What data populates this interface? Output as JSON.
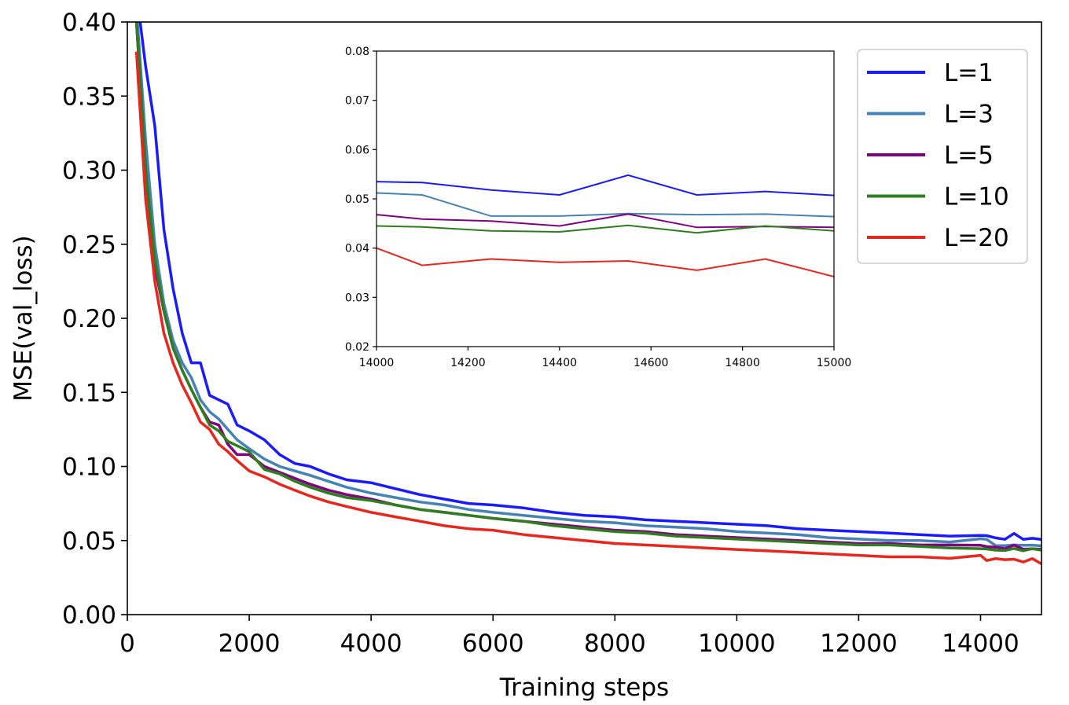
{
  "chart_data": {
    "type": "line",
    "title": "",
    "xlabel": "Training steps",
    "ylabel": "MSE(val_loss)",
    "xlim": [
      0,
      15000
    ],
    "ylim": [
      0,
      0.4
    ],
    "xticks": [
      0,
      2000,
      4000,
      6000,
      8000,
      10000,
      12000,
      14000
    ],
    "yticks": [
      0.0,
      0.05,
      0.1,
      0.15,
      0.2,
      0.25,
      0.3,
      0.35,
      0.4
    ],
    "grid": false,
    "legend_position": "top-right",
    "series": [
      {
        "name": "L=1",
        "color": "#1a1aff",
        "x": [
          150,
          300,
          450,
          600,
          750,
          900,
          1050,
          1200,
          1350,
          1500,
          1650,
          1800,
          2000,
          2250,
          2500,
          2750,
          3000,
          3300,
          3600,
          4000,
          4400,
          4800,
          5200,
          5600,
          6000,
          6500,
          7000,
          7500,
          8000,
          8500,
          9000,
          9500,
          10000,
          10500,
          11000,
          11500,
          12000,
          12500,
          13000,
          13500,
          14000,
          14100,
          14250,
          14400,
          14550,
          14700,
          14850,
          15000
        ],
        "y": [
          0.42,
          0.37,
          0.33,
          0.26,
          0.22,
          0.19,
          0.17,
          0.17,
          0.148,
          0.145,
          0.142,
          0.128,
          0.124,
          0.118,
          0.108,
          0.102,
          0.1,
          0.095,
          0.091,
          0.089,
          0.085,
          0.081,
          0.078,
          0.075,
          0.074,
          0.072,
          0.069,
          0.067,
          0.066,
          0.064,
          0.063,
          0.062,
          0.061,
          0.06,
          0.058,
          0.057,
          0.056,
          0.055,
          0.054,
          0.053,
          0.0535,
          0.0533,
          0.0518,
          0.0508,
          0.0548,
          0.0508,
          0.0515,
          0.0507
        ]
      },
      {
        "name": "L=3",
        "color": "#4682b4",
        "x": [
          150,
          300,
          450,
          600,
          750,
          900,
          1050,
          1200,
          1350,
          1500,
          1650,
          1800,
          2000,
          2250,
          2500,
          2750,
          3000,
          3300,
          3600,
          4000,
          4400,
          4800,
          5200,
          5600,
          6000,
          6500,
          7000,
          7500,
          8000,
          8500,
          9000,
          9500,
          10000,
          10500,
          11000,
          11500,
          12000,
          12500,
          13000,
          13500,
          14000,
          14100,
          14250,
          14400,
          14550,
          14700,
          14850,
          15000
        ],
        "y": [
          0.41,
          0.32,
          0.25,
          0.21,
          0.185,
          0.17,
          0.16,
          0.145,
          0.137,
          0.132,
          0.125,
          0.118,
          0.112,
          0.105,
          0.1,
          0.097,
          0.094,
          0.09,
          0.086,
          0.082,
          0.079,
          0.076,
          0.074,
          0.071,
          0.069,
          0.067,
          0.065,
          0.063,
          0.062,
          0.06,
          0.059,
          0.058,
          0.056,
          0.055,
          0.054,
          0.052,
          0.051,
          0.05,
          0.05,
          0.049,
          0.0512,
          0.0508,
          0.0465,
          0.0465,
          0.047,
          0.0468,
          0.0469,
          0.0464
        ]
      },
      {
        "name": "L=5",
        "color": "#800080",
        "x": [
          150,
          300,
          450,
          600,
          750,
          900,
          1050,
          1200,
          1350,
          1500,
          1650,
          1800,
          2000,
          2250,
          2500,
          2750,
          3000,
          3300,
          3600,
          4000,
          4400,
          4800,
          5200,
          5600,
          6000,
          6500,
          7000,
          7500,
          8000,
          8500,
          9000,
          9500,
          10000,
          10500,
          11000,
          11500,
          12000,
          12500,
          13000,
          13500,
          14000,
          14100,
          14250,
          14400,
          14550,
          14700,
          14850,
          15000
        ],
        "y": [
          0.4,
          0.3,
          0.235,
          0.205,
          0.18,
          0.165,
          0.152,
          0.14,
          0.13,
          0.128,
          0.115,
          0.108,
          0.108,
          0.1,
          0.096,
          0.092,
          0.088,
          0.084,
          0.081,
          0.078,
          0.074,
          0.071,
          0.069,
          0.067,
          0.065,
          0.063,
          0.061,
          0.059,
          0.057,
          0.056,
          0.054,
          0.053,
          0.052,
          0.051,
          0.05,
          0.049,
          0.048,
          0.048,
          0.047,
          0.047,
          0.0468,
          0.0459,
          0.0455,
          0.0445,
          0.0469,
          0.0442,
          0.0444,
          0.0442
        ]
      },
      {
        "name": "L=10",
        "color": "#2e7d1e",
        "x": [
          150,
          300,
          450,
          600,
          750,
          900,
          1050,
          1200,
          1350,
          1500,
          1650,
          1800,
          2000,
          2250,
          2500,
          2750,
          3000,
          3300,
          3600,
          4000,
          4400,
          4800,
          5200,
          5600,
          6000,
          6500,
          7000,
          7500,
          8000,
          8500,
          9000,
          9500,
          10000,
          10500,
          11000,
          11500,
          12000,
          12500,
          13000,
          13500,
          14000,
          14100,
          14250,
          14400,
          14550,
          14700,
          14850,
          15000
        ],
        "y": [
          0.4,
          0.3,
          0.24,
          0.205,
          0.18,
          0.165,
          0.152,
          0.14,
          0.128,
          0.124,
          0.117,
          0.114,
          0.11,
          0.098,
          0.095,
          0.09,
          0.086,
          0.082,
          0.079,
          0.077,
          0.074,
          0.071,
          0.069,
          0.067,
          0.065,
          0.063,
          0.06,
          0.058,
          0.056,
          0.055,
          0.053,
          0.052,
          0.051,
          0.05,
          0.049,
          0.048,
          0.047,
          0.047,
          0.046,
          0.045,
          0.0445,
          0.0443,
          0.0435,
          0.0433,
          0.0446,
          0.0431,
          0.0445,
          0.0435
        ]
      },
      {
        "name": "L=20",
        "color": "#e8261e",
        "x": [
          150,
          300,
          450,
          600,
          750,
          900,
          1050,
          1200,
          1350,
          1500,
          1650,
          1800,
          2000,
          2250,
          2500,
          2750,
          3000,
          3300,
          3600,
          4000,
          4400,
          4800,
          5200,
          5600,
          6000,
          6500,
          7000,
          7500,
          8000,
          8500,
          9000,
          9500,
          10000,
          10500,
          11000,
          11500,
          12000,
          12500,
          13000,
          13500,
          14000,
          14100,
          14250,
          14400,
          14550,
          14700,
          14850,
          15000
        ],
        "y": [
          0.38,
          0.28,
          0.225,
          0.19,
          0.17,
          0.155,
          0.143,
          0.13,
          0.125,
          0.115,
          0.11,
          0.104,
          0.097,
          0.093,
          0.088,
          0.084,
          0.08,
          0.076,
          0.073,
          0.069,
          0.066,
          0.063,
          0.06,
          0.058,
          0.057,
          0.054,
          0.052,
          0.05,
          0.048,
          0.047,
          0.046,
          0.045,
          0.044,
          0.043,
          0.042,
          0.041,
          0.04,
          0.039,
          0.039,
          0.038,
          0.04,
          0.0365,
          0.0378,
          0.0371,
          0.0374,
          0.0355,
          0.0378,
          0.0342
        ]
      }
    ],
    "inset": {
      "type": "line",
      "xlim": [
        14000,
        15000
      ],
      "ylim": [
        0.02,
        0.08
      ],
      "xticks": [
        14000,
        14200,
        14400,
        14600,
        14800,
        15000
      ],
      "yticks": [
        0.02,
        0.03,
        0.04,
        0.05,
        0.06,
        0.07,
        0.08
      ],
      "x": [
        14000,
        14100,
        14250,
        14400,
        14550,
        14700,
        14850,
        15000
      ]
    }
  }
}
